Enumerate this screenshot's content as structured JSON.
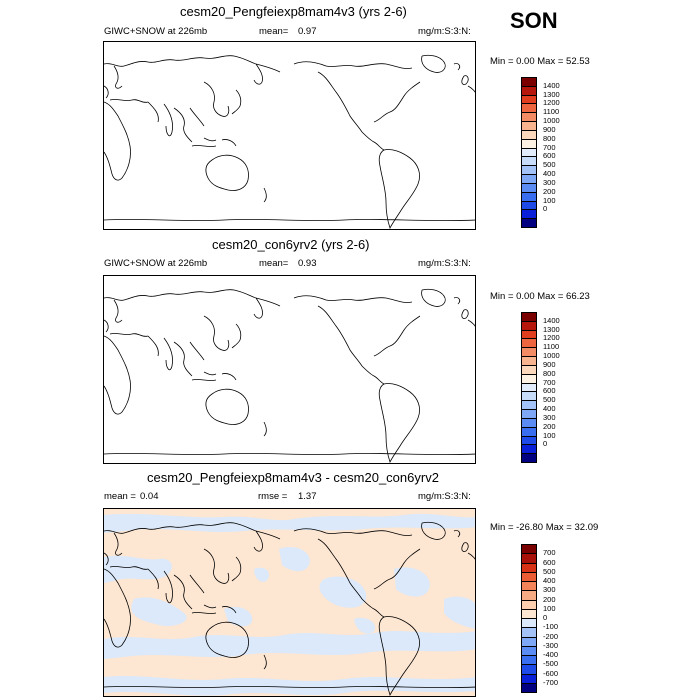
{
  "season": "SON",
  "colors": {
    "abs_scale": [
      "#000080",
      "#0a1fd8",
      "#1e4be8",
      "#3a6ef0",
      "#5b8cf3",
      "#7ea7f5",
      "#a3c2f7",
      "#c7dcf9",
      "#e2ecfa",
      "#fdf1e3",
      "#fbd8bc",
      "#f7b48f",
      "#f38c64",
      "#ee663f",
      "#e03e1f",
      "#b5170c",
      "#7a0000"
    ],
    "diff_scale": [
      "#000080",
      "#0a1fd8",
      "#1e4be8",
      "#3a6ef0",
      "#5b8cf3",
      "#7ea7f5",
      "#a3c2f7",
      "#dbe9fa",
      "#fde6d2",
      "#fbcfb0",
      "#f7ab84",
      "#f38358",
      "#ec5c35",
      "#d83216",
      "#a8100a",
      "#7a0000"
    ],
    "diff_light_blue": "#dbe9fa",
    "diff_light_orange": "#fde6d2"
  },
  "panels": [
    {
      "title": "cesm20_Pengfeiexp8mam4v3 (yrs 2-6)",
      "left": "GIWC+SNOW at 226mb",
      "mean_label": "mean=",
      "mean_value": "0.97",
      "units": "mg/m:S:3:N:",
      "minmax": "Min =  0.00 Max =  52.53",
      "cb_labels": [
        "1400",
        "1300",
        "1200",
        "1100",
        "1000",
        "900",
        "800",
        "700",
        "600",
        "500",
        "400",
        "300",
        "200",
        "100",
        "0"
      ]
    },
    {
      "title": "cesm20_con6yrv2 (yrs 2-6)",
      "left": "GIWC+SNOW at 226mb",
      "mean_label": "mean=",
      "mean_value": "0.93",
      "units": "mg/m:S:3:N:",
      "minmax": "Min =  0.00 Max =  66.23",
      "cb_labels": [
        "1400",
        "1300",
        "1200",
        "1100",
        "1000",
        "900",
        "800",
        "700",
        "600",
        "500",
        "400",
        "300",
        "200",
        "100",
        "0"
      ]
    },
    {
      "title": "cesm20_Pengfeiexp8mam4v3 - cesm20_con6yrv2",
      "left_label": "mean =",
      "left_value": "0.04",
      "rmse_label": "rmse =",
      "rmse_value": "1.37",
      "units": "mg/m:S:3:N:",
      "minmax": "Min = -26.80 Max =  32.09",
      "cb_labels": [
        "700",
        "600",
        "500",
        "400",
        "300",
        "200",
        "100",
        "0",
        "-100",
        "-200",
        "-300",
        "-400",
        "-500",
        "-600",
        "-700"
      ]
    }
  ],
  "icons": {
    "coastline": "world-coastline-icon"
  }
}
